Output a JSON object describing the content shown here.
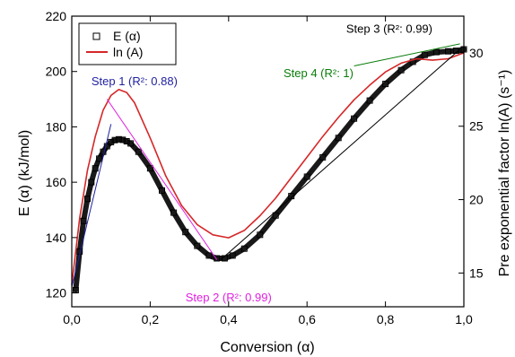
{
  "chart_data": {
    "type": "scatter",
    "title": "",
    "xlabel": "Conversion (α)",
    "ylabel": "E (α) (kJ/mol)",
    "y2label": "Pre exponential factor ln(A) (s⁻¹)",
    "xlim": [
      0,
      1
    ],
    "ylim": [
      115,
      220
    ],
    "y2lim": [
      12.7,
      32.5
    ],
    "xticks": [
      0,
      0.2,
      0.4,
      0.6,
      0.8,
      1.0
    ],
    "xtick_labels": [
      "0,0",
      "0,2",
      "0,4",
      "0,6",
      "0,8",
      "1,0"
    ],
    "yticks": [
      120,
      140,
      160,
      180,
      200,
      220
    ],
    "ytick_labels": [
      "120",
      "140",
      "160",
      "180",
      "200",
      "220"
    ],
    "y2ticks": [
      15,
      20,
      25,
      30
    ],
    "y2tick_labels": [
      "15",
      "20",
      "25",
      "30"
    ],
    "grid": false,
    "legend_position": "top-left",
    "legend": [
      {
        "label": "E (α)",
        "marker": "open-square",
        "color": "#000000"
      },
      {
        "label": "ln (A)",
        "marker": "line",
        "color": "#d62728"
      }
    ],
    "series": [
      {
        "name": "E (α)",
        "axis": "left",
        "style": "markers",
        "color": "#000000",
        "x": [
          0.01,
          0.02,
          0.03,
          0.04,
          0.05,
          0.06,
          0.07,
          0.08,
          0.09,
          0.1,
          0.11,
          0.12,
          0.13,
          0.14,
          0.15,
          0.17,
          0.2,
          0.23,
          0.26,
          0.29,
          0.32,
          0.35,
          0.37,
          0.39,
          0.41,
          0.44,
          0.48,
          0.52,
          0.56,
          0.6,
          0.64,
          0.68,
          0.72,
          0.76,
          0.8,
          0.84,
          0.87,
          0.9,
          0.93,
          0.96,
          0.98,
          1.0
        ],
        "y": [
          121,
          135,
          146,
          154,
          160,
          165,
          168.5,
          171,
          173,
          174.5,
          175.2,
          175.5,
          175.3,
          174.8,
          174,
          171,
          165,
          157,
          149,
          142,
          137,
          133.5,
          132.5,
          132.5,
          133.5,
          136,
          141,
          148,
          155,
          162,
          169,
          176,
          183,
          189.5,
          195.5,
          200.5,
          203.5,
          206,
          207,
          207.3,
          207.5,
          208
        ]
      },
      {
        "name": "ln (A)",
        "axis": "right",
        "style": "line",
        "color": "#d62728",
        "x": [
          0.0,
          0.02,
          0.04,
          0.06,
          0.08,
          0.1,
          0.12,
          0.14,
          0.16,
          0.2,
          0.24,
          0.28,
          0.32,
          0.36,
          0.4,
          0.44,
          0.48,
          0.52,
          0.56,
          0.6,
          0.64,
          0.68,
          0.72,
          0.76,
          0.8,
          0.84,
          0.88,
          0.92,
          0.96,
          1.0
        ],
        "y": [
          14.2,
          18.7,
          22.0,
          24.3,
          26.1,
          27.1,
          27.5,
          27.3,
          26.6,
          24.2,
          21.6,
          19.6,
          18.3,
          17.6,
          17.4,
          17.9,
          18.9,
          20.1,
          21.5,
          22.9,
          24.3,
          25.6,
          26.8,
          27.8,
          28.7,
          29.3,
          29.6,
          29.5,
          29.6,
          30.0
        ]
      }
    ],
    "annotations": [
      {
        "text": "Step 1 (R²: 0.88)",
        "x": 0.05,
        "y": 195,
        "color": "#1f1fa0",
        "line": [
          [
            0.0,
            122
          ],
          [
            0.1,
            181
          ]
        ]
      },
      {
        "text": "Step 2 (R²: 0.99)",
        "x": 0.29,
        "y": 117,
        "color": "#e020e0",
        "line": [
          [
            0.09,
            190
          ],
          [
            0.37,
            132
          ]
        ]
      },
      {
        "text": "Step 3 (R²: 0.99)",
        "x": 0.7,
        "y": 214,
        "color": "#000000",
        "line": [
          [
            0.38,
            132
          ],
          [
            0.99,
            208
          ]
        ]
      },
      {
        "text": "Step 4 (R²: 1)",
        "x": 0.54,
        "y": 198,
        "color": "#0a7d0a",
        "line": [
          [
            0.72,
            202
          ],
          [
            0.99,
            210
          ]
        ]
      }
    ]
  }
}
